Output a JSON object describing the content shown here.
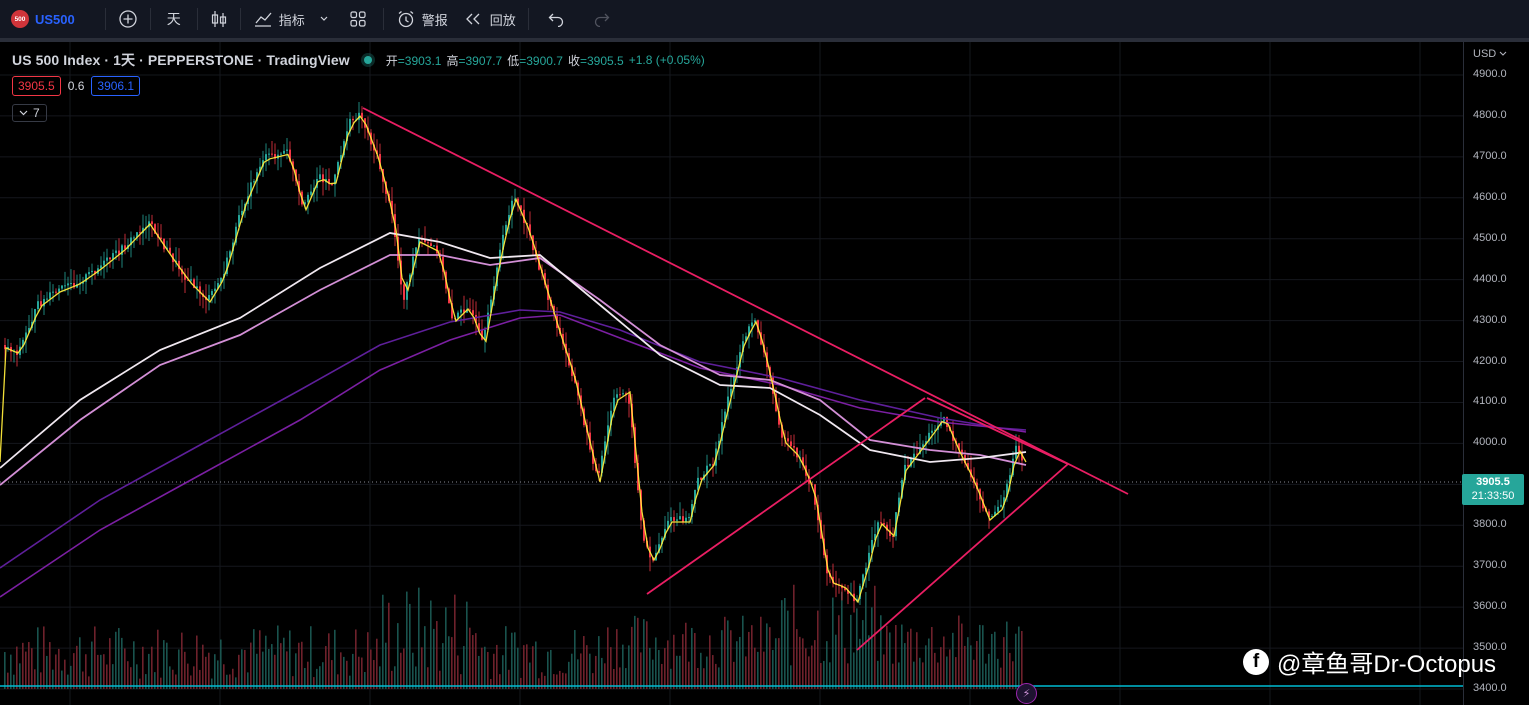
{
  "toolbar": {
    "symbol_logo": "500",
    "symbol": "US500",
    "interval": "天",
    "indicators_label": "指标",
    "alert_label": "警报",
    "replay_label": "回放",
    "icons": [
      "plus-circle-icon",
      "candle-icon",
      "line-chart-icon",
      "grid-icon",
      "alarm-clock-icon",
      "rewind-icon",
      "undo-icon",
      "redo-icon"
    ]
  },
  "legend": {
    "title": "US 500 Index · 1天 · PEPPERSTONE · TradingView",
    "open_label": "开",
    "open": "=3903.1",
    "high_label": "高",
    "high": "=3907.7",
    "low_label": "低",
    "low": "=3900.7",
    "close_label": "收",
    "close": "=3905.5",
    "change": "+1.8 (+0.05%)",
    "bid": "3905.5",
    "spread": "0.6",
    "ask": "3906.1",
    "indicator_count": "7"
  },
  "price_scale": {
    "currency": "USD",
    "ticks": [
      "4900.0",
      "4800.0",
      "4700.0",
      "4600.0",
      "4500.0",
      "4400.0",
      "4300.0",
      "4200.0",
      "4100.0",
      "4000.0",
      "3800.0",
      "3700.0",
      "3600.0",
      "3500.0",
      "3400.0"
    ],
    "last_price": "3905.5",
    "countdown": "21:33:50"
  },
  "watermark": "@章鱼哥Dr-Octopus",
  "colors": {
    "up": "#26a69a",
    "down": "#f23645",
    "trendline": "#e91e63",
    "ma_fast": "#ffeb3b",
    "ma_white": "#f0e8f0",
    "ma_pink": "#d38fd6",
    "ma_purple": "#7b1fa2",
    "ma_indigo": "#5e1f9a",
    "hline": "#00bcd4"
  }
}
